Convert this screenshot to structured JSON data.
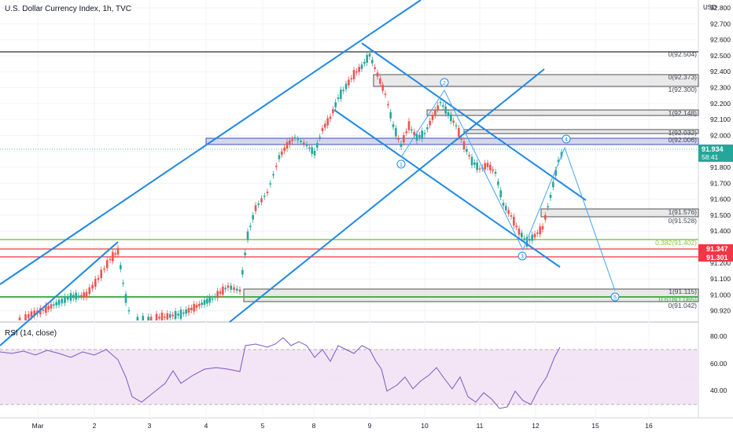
{
  "header": {
    "symbol_title": "U.S. Dollar Currency Index, 1h, TVC",
    "currency": "USD"
  },
  "rsi_panel": {
    "label": "RSI (14, close)",
    "axis_labels": [
      "80.00",
      "60.00",
      "40.00"
    ]
  },
  "price_axis": {
    "labels": [
      "92.800",
      "92.700",
      "92.600",
      "92.500",
      "92.400",
      "92.300",
      "92.200",
      "92.100",
      "92.000",
      "91.900",
      "91.800",
      "91.700",
      "91.600",
      "91.500",
      "91.400",
      "91.300",
      "91.200",
      "91.100",
      "91.000",
      "90.920"
    ],
    "last_price": "91.934",
    "countdown": "58:41",
    "red_level_1": "91.347",
    "red_level_2": "91.301"
  },
  "time_axis": {
    "labels": [
      "Mar",
      "2",
      "3",
      "4",
      "5",
      "8",
      "9",
      "10",
      "11",
      "12",
      "15",
      "16"
    ]
  },
  "fib_labels": {
    "top_0": "0(92.504)",
    "block1_0": "0(92.373)",
    "block1_1": "1(92.300)",
    "block2_1": "1(92.148)",
    "block3_1": "1(92.032)",
    "block3_0": "0(92.006)",
    "block4_1": "1(91.576)",
    "block4_0": "0(91.528)",
    "fib_382": "0.382(91.402)",
    "block5_1": "1(91.115)",
    "block5_618": "0.618(1.065)",
    "block5_0": "0(91.042)"
  },
  "wave_labels": [
    "1",
    "2",
    "3",
    "4",
    "5"
  ],
  "colors": {
    "channel_blue": "#1e88e5",
    "red_level": "#f23645",
    "green_level": "#4caf50",
    "lime_level": "#8bc34a",
    "bull_candle": "#26a69a",
    "bear_candle": "#ef5350",
    "rsi_line": "#7e57c2",
    "rsi_band": "#f3e5f5",
    "highlight_zone": "#c5cae9",
    "last_price_badge": "#26a69a"
  },
  "icons": {
    "wave_marker": "circled-number-icon"
  }
}
